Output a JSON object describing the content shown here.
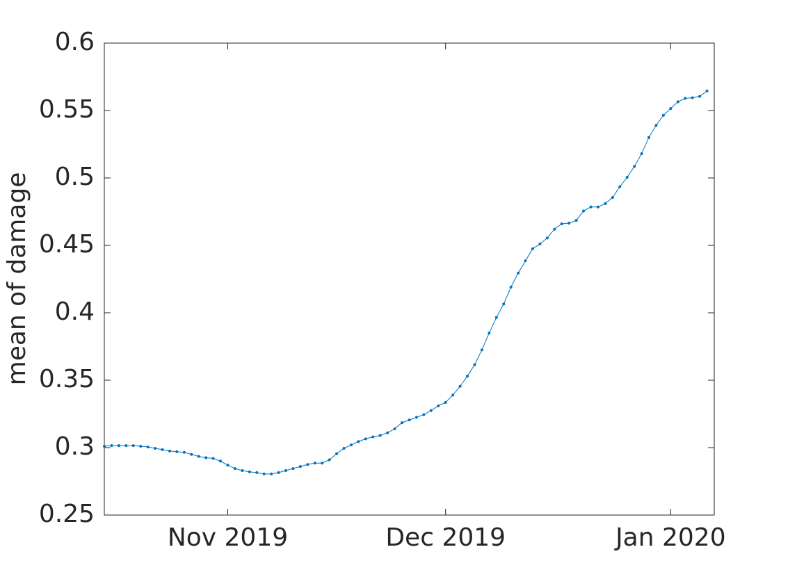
{
  "chart_data": {
    "type": "line",
    "ylabel": "mean of damage",
    "x": [
      0,
      1,
      2,
      3,
      4,
      5,
      6,
      7,
      8,
      9,
      10,
      11,
      12,
      13,
      14,
      15,
      16,
      17,
      18,
      19,
      20,
      21,
      22,
      23,
      24,
      25,
      26,
      27,
      28,
      29,
      30,
      31,
      32,
      33,
      34,
      35,
      36,
      37,
      38,
      39,
      40,
      41,
      42,
      43,
      44,
      45,
      46,
      47,
      48,
      49,
      50,
      51,
      52,
      53,
      54,
      55,
      56,
      57,
      58,
      59,
      60,
      61,
      62,
      63,
      64,
      65,
      66,
      67,
      68,
      69,
      70,
      71,
      72,
      73,
      74,
      75,
      76,
      77,
      78,
      79,
      80,
      81,
      82,
      83
    ],
    "series": [
      {
        "color": "#0072bd",
        "values": [
          0.301,
          0.3015,
          0.3015,
          0.3015,
          0.3015,
          0.301,
          0.3005,
          0.2995,
          0.2985,
          0.2975,
          0.297,
          0.2965,
          0.295,
          0.2935,
          0.2925,
          0.292,
          0.29,
          0.287,
          0.2845,
          0.283,
          0.282,
          0.2815,
          0.2805,
          0.2805,
          0.2815,
          0.283,
          0.2845,
          0.286,
          0.2875,
          0.2885,
          0.2885,
          0.291,
          0.2955,
          0.2995,
          0.302,
          0.3045,
          0.3065,
          0.308,
          0.309,
          0.311,
          0.314,
          0.3185,
          0.3205,
          0.3225,
          0.3245,
          0.3275,
          0.331,
          0.3335,
          0.339,
          0.3455,
          0.353,
          0.3615,
          0.3725,
          0.385,
          0.3965,
          0.4065,
          0.419,
          0.4295,
          0.4385,
          0.4475,
          0.451,
          0.4555,
          0.462,
          0.466,
          0.4665,
          0.4685,
          0.4755,
          0.4785,
          0.4785,
          0.481,
          0.4855,
          0.4935,
          0.5005,
          0.5085,
          0.518,
          0.53,
          0.539,
          0.5465,
          0.5515,
          0.5565,
          0.559,
          0.5595,
          0.5605,
          0.5645
        ]
      }
    ],
    "xlim": [
      0,
      84
    ],
    "xticks": [
      {
        "value": 17,
        "label": "Nov 2019"
      },
      {
        "value": 47,
        "label": "Dec 2019"
      },
      {
        "value": 78,
        "label": "Jan 2020"
      }
    ],
    "ylim": [
      0.25,
      0.6
    ],
    "yticks": [
      0.25,
      0.3,
      0.35,
      0.4,
      0.45,
      0.5,
      0.55,
      0.6
    ]
  }
}
